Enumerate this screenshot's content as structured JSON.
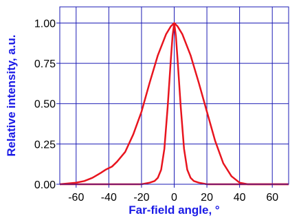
{
  "chart_data": {
    "type": "line",
    "xlabel": "Far-field angle, °",
    "ylabel": "Relative intensity, a.u.",
    "xlim": [
      -70,
      70
    ],
    "ylim": [
      0,
      1.1
    ],
    "x_ticks": [
      -60,
      -40,
      -20,
      0,
      20,
      40,
      60
    ],
    "x_tick_labels": [
      "-60",
      "-40",
      "-20",
      "0",
      "20",
      "40",
      "60"
    ],
    "y_ticks": [
      0,
      0.25,
      0.5,
      0.75,
      1.0
    ],
    "y_tick_labels": [
      "0.00",
      "0.25",
      "0.50",
      "0.75",
      "1.00"
    ],
    "grid": true,
    "colors": {
      "grid": "#1a1ab4",
      "axis_label": "#1a1ae6",
      "series": "#e8141e"
    },
    "series": [
      {
        "x": [
          -70,
          -60,
          -55,
          -50,
          -45,
          -42,
          -40,
          -38,
          -35,
          -30,
          -25,
          -20,
          -15,
          -10,
          -5,
          -2,
          0,
          2,
          5,
          10,
          15,
          20,
          25,
          30,
          35,
          40,
          45,
          50,
          55,
          60,
          70
        ],
        "values": [
          0.0,
          0.01,
          0.02,
          0.04,
          0.07,
          0.09,
          0.1,
          0.11,
          0.14,
          0.2,
          0.31,
          0.45,
          0.63,
          0.8,
          0.93,
          0.98,
          1.0,
          0.98,
          0.93,
          0.8,
          0.63,
          0.45,
          0.27,
          0.13,
          0.05,
          0.01,
          0.0,
          0.0,
          0.0,
          0.0,
          0.0
        ]
      },
      {
        "x": [
          -70,
          -20,
          -15,
          -12,
          -10,
          -8,
          -6,
          -4,
          -2,
          -1,
          0,
          1,
          2,
          4,
          6,
          8,
          10,
          12,
          15,
          20,
          70
        ],
        "values": [
          0.0,
          0.0,
          0.01,
          0.02,
          0.04,
          0.09,
          0.22,
          0.48,
          0.78,
          0.92,
          1.0,
          0.92,
          0.78,
          0.48,
          0.22,
          0.09,
          0.04,
          0.02,
          0.01,
          0.0,
          0.0
        ]
      }
    ]
  }
}
